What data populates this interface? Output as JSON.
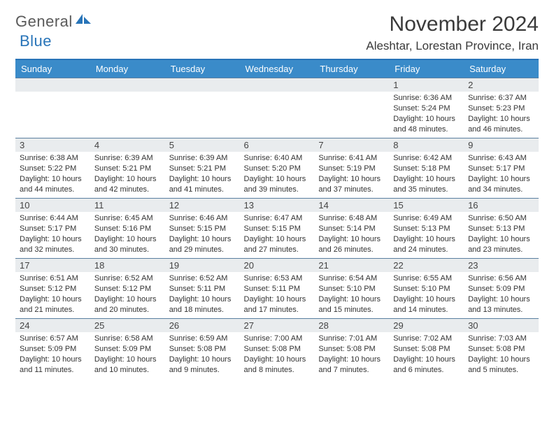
{
  "brand": {
    "text1": "General",
    "text2": "Blue"
  },
  "title": "November 2024",
  "location": "Aleshtar, Lorestan Province, Iran",
  "colors": {
    "header_bg": "#3a8bc9",
    "header_border": "#2874b8",
    "row_border": "#5a7fa0",
    "daynum_bg": "#e9ecee",
    "text": "#333333",
    "brand_gray": "#5a5a5a",
    "brand_blue": "#2874b8"
  },
  "weekdays": [
    "Sunday",
    "Monday",
    "Tuesday",
    "Wednesday",
    "Thursday",
    "Friday",
    "Saturday"
  ],
  "weeks": [
    [
      null,
      null,
      null,
      null,
      null,
      {
        "n": "1",
        "sr": "6:36 AM",
        "ss": "5:24 PM",
        "dl": "10 hours and 48 minutes."
      },
      {
        "n": "2",
        "sr": "6:37 AM",
        "ss": "5:23 PM",
        "dl": "10 hours and 46 minutes."
      }
    ],
    [
      {
        "n": "3",
        "sr": "6:38 AM",
        "ss": "5:22 PM",
        "dl": "10 hours and 44 minutes."
      },
      {
        "n": "4",
        "sr": "6:39 AM",
        "ss": "5:21 PM",
        "dl": "10 hours and 42 minutes."
      },
      {
        "n": "5",
        "sr": "6:39 AM",
        "ss": "5:21 PM",
        "dl": "10 hours and 41 minutes."
      },
      {
        "n": "6",
        "sr": "6:40 AM",
        "ss": "5:20 PM",
        "dl": "10 hours and 39 minutes."
      },
      {
        "n": "7",
        "sr": "6:41 AM",
        "ss": "5:19 PM",
        "dl": "10 hours and 37 minutes."
      },
      {
        "n": "8",
        "sr": "6:42 AM",
        "ss": "5:18 PM",
        "dl": "10 hours and 35 minutes."
      },
      {
        "n": "9",
        "sr": "6:43 AM",
        "ss": "5:17 PM",
        "dl": "10 hours and 34 minutes."
      }
    ],
    [
      {
        "n": "10",
        "sr": "6:44 AM",
        "ss": "5:17 PM",
        "dl": "10 hours and 32 minutes."
      },
      {
        "n": "11",
        "sr": "6:45 AM",
        "ss": "5:16 PM",
        "dl": "10 hours and 30 minutes."
      },
      {
        "n": "12",
        "sr": "6:46 AM",
        "ss": "5:15 PM",
        "dl": "10 hours and 29 minutes."
      },
      {
        "n": "13",
        "sr": "6:47 AM",
        "ss": "5:15 PM",
        "dl": "10 hours and 27 minutes."
      },
      {
        "n": "14",
        "sr": "6:48 AM",
        "ss": "5:14 PM",
        "dl": "10 hours and 26 minutes."
      },
      {
        "n": "15",
        "sr": "6:49 AM",
        "ss": "5:13 PM",
        "dl": "10 hours and 24 minutes."
      },
      {
        "n": "16",
        "sr": "6:50 AM",
        "ss": "5:13 PM",
        "dl": "10 hours and 23 minutes."
      }
    ],
    [
      {
        "n": "17",
        "sr": "6:51 AM",
        "ss": "5:12 PM",
        "dl": "10 hours and 21 minutes."
      },
      {
        "n": "18",
        "sr": "6:52 AM",
        "ss": "5:12 PM",
        "dl": "10 hours and 20 minutes."
      },
      {
        "n": "19",
        "sr": "6:52 AM",
        "ss": "5:11 PM",
        "dl": "10 hours and 18 minutes."
      },
      {
        "n": "20",
        "sr": "6:53 AM",
        "ss": "5:11 PM",
        "dl": "10 hours and 17 minutes."
      },
      {
        "n": "21",
        "sr": "6:54 AM",
        "ss": "5:10 PM",
        "dl": "10 hours and 15 minutes."
      },
      {
        "n": "22",
        "sr": "6:55 AM",
        "ss": "5:10 PM",
        "dl": "10 hours and 14 minutes."
      },
      {
        "n": "23",
        "sr": "6:56 AM",
        "ss": "5:09 PM",
        "dl": "10 hours and 13 minutes."
      }
    ],
    [
      {
        "n": "24",
        "sr": "6:57 AM",
        "ss": "5:09 PM",
        "dl": "10 hours and 11 minutes."
      },
      {
        "n": "25",
        "sr": "6:58 AM",
        "ss": "5:09 PM",
        "dl": "10 hours and 10 minutes."
      },
      {
        "n": "26",
        "sr": "6:59 AM",
        "ss": "5:08 PM",
        "dl": "10 hours and 9 minutes."
      },
      {
        "n": "27",
        "sr": "7:00 AM",
        "ss": "5:08 PM",
        "dl": "10 hours and 8 minutes."
      },
      {
        "n": "28",
        "sr": "7:01 AM",
        "ss": "5:08 PM",
        "dl": "10 hours and 7 minutes."
      },
      {
        "n": "29",
        "sr": "7:02 AM",
        "ss": "5:08 PM",
        "dl": "10 hours and 6 minutes."
      },
      {
        "n": "30",
        "sr": "7:03 AM",
        "ss": "5:08 PM",
        "dl": "10 hours and 5 minutes."
      }
    ]
  ],
  "labels": {
    "sunrise": "Sunrise:",
    "sunset": "Sunset:",
    "daylight": "Daylight:"
  }
}
